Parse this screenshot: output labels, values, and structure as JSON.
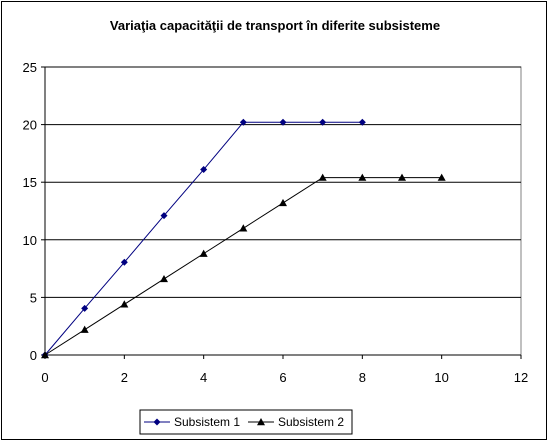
{
  "chart_data": {
    "type": "line",
    "title": "Variaţia capacităţii de transport în diferite subsisteme",
    "xlabel": "",
    "ylabel": "",
    "xlim": [
      0,
      12
    ],
    "ylim": [
      0,
      25
    ],
    "xticks": [
      0,
      2,
      4,
      6,
      8,
      10,
      12
    ],
    "yticks": [
      0,
      5,
      10,
      15,
      20,
      25
    ],
    "grid": "horizontal",
    "legend_position": "bottom",
    "series": [
      {
        "name": "Subsistem 1",
        "marker": "diamond",
        "color": "#000080",
        "x": [
          0,
          1,
          2,
          3,
          4,
          5,
          6,
          7,
          8
        ],
        "y": [
          0,
          4.05,
          8.05,
          12.1,
          16.1,
          20.2,
          20.2,
          20.2,
          20.2
        ]
      },
      {
        "name": "Subsistem 2",
        "marker": "triangle",
        "color": "#000000",
        "x": [
          0,
          1,
          2,
          3,
          4,
          5,
          6,
          7,
          8,
          9,
          10
        ],
        "y": [
          0,
          2.2,
          4.4,
          6.6,
          8.8,
          11.0,
          13.2,
          15.4,
          15.4,
          15.4,
          15.4
        ]
      }
    ]
  }
}
